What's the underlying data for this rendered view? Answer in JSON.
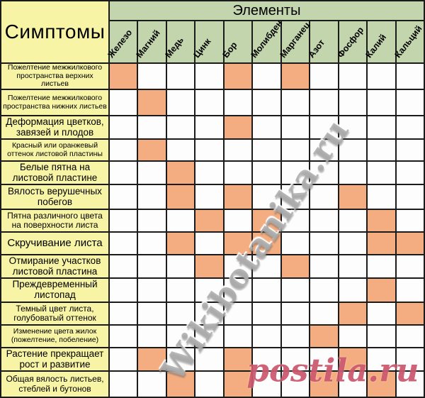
{
  "chart_data": {
    "type": "table",
    "row_group_title": "Симптомы",
    "column_group_title": "Элементы",
    "columns": [
      "Железо",
      "Магний",
      "Медь",
      "Цинк",
      "Бор",
      "Молибден",
      "Марганец",
      "Азот",
      "Фосфор",
      "Калий",
      "Кальций"
    ],
    "rows": [
      {
        "label": "Пожелтение межжилкового пространства верхних листьев",
        "cells": [
          1,
          0,
          0,
          0,
          1,
          0,
          1,
          0,
          0,
          0,
          0
        ]
      },
      {
        "label": "Пожелтение межжилкового пространства нижних листьев",
        "cells": [
          0,
          1,
          0,
          0,
          0,
          0,
          0,
          0,
          0,
          0,
          0
        ]
      },
      {
        "label": "Деформация цветков, завязей и плодов",
        "cells": [
          0,
          0,
          0,
          0,
          1,
          0,
          0,
          0,
          0,
          0,
          0
        ]
      },
      {
        "label": "Красный или оранжевый оттенок листовой пластины",
        "cells": [
          0,
          1,
          0,
          0,
          0,
          0,
          0,
          0,
          0,
          0,
          0
        ]
      },
      {
        "label": "Белые пятна на листовой пластине",
        "cells": [
          0,
          0,
          1,
          0,
          0,
          0,
          0,
          0,
          0,
          0,
          0
        ]
      },
      {
        "label": "Вялость верушечных побегов",
        "cells": [
          0,
          0,
          1,
          0,
          1,
          0,
          0,
          0,
          1,
          0,
          0
        ]
      },
      {
        "label": "Пятна различного цвета на поверхности листа",
        "cells": [
          0,
          0,
          0,
          1,
          0,
          1,
          0,
          0,
          0,
          1,
          0
        ]
      },
      {
        "label": "Скручивание листа",
        "cells": [
          0,
          0,
          1,
          0,
          1,
          1,
          0,
          0,
          0,
          1,
          1
        ]
      },
      {
        "label": "Отмирание участков листовой пластина",
        "cells": [
          0,
          0,
          0,
          1,
          0,
          0,
          1,
          0,
          0,
          0,
          0
        ]
      },
      {
        "label": "Преждевременный листопад",
        "cells": [
          0,
          0,
          0,
          0,
          0,
          0,
          0,
          0,
          0,
          1,
          0
        ]
      },
      {
        "label": "Темный цвет листа, голубоватый оттенок",
        "cells": [
          0,
          0,
          0,
          0,
          0,
          0,
          0,
          0,
          1,
          0,
          1
        ]
      },
      {
        "label": "Изменение цвета жилок (пожелтение, побеление)",
        "cells": [
          0,
          0,
          0,
          0,
          0,
          0,
          0,
          1,
          0,
          0,
          0
        ]
      },
      {
        "label": "Растение прекращает рост и развитие",
        "cells": [
          0,
          1,
          0,
          0,
          1,
          0,
          0,
          0,
          1,
          0,
          0
        ]
      },
      {
        "label": "Общая вялость листьев, стеблей и бутонов",
        "cells": [
          0,
          0,
          1,
          0,
          1,
          0,
          0,
          1,
          0,
          1,
          0
        ]
      }
    ],
    "legend_position": "none",
    "grid": true
  },
  "watermarks": {
    "diagonal_text": "Wikibotanika.ru",
    "corner_text": "postila.ru"
  },
  "colors": {
    "header_green": "#c3d5ac",
    "label_yellow": "#f8f4a6",
    "cell_white": "#fdfdfd",
    "mark_orange": "#f4ad80",
    "grid_line": "#1b1b1b",
    "watermark_grey": "rgba(168,168,168,0.82)",
    "watermark_pink": "rgba(199,77,101,0.88)"
  }
}
